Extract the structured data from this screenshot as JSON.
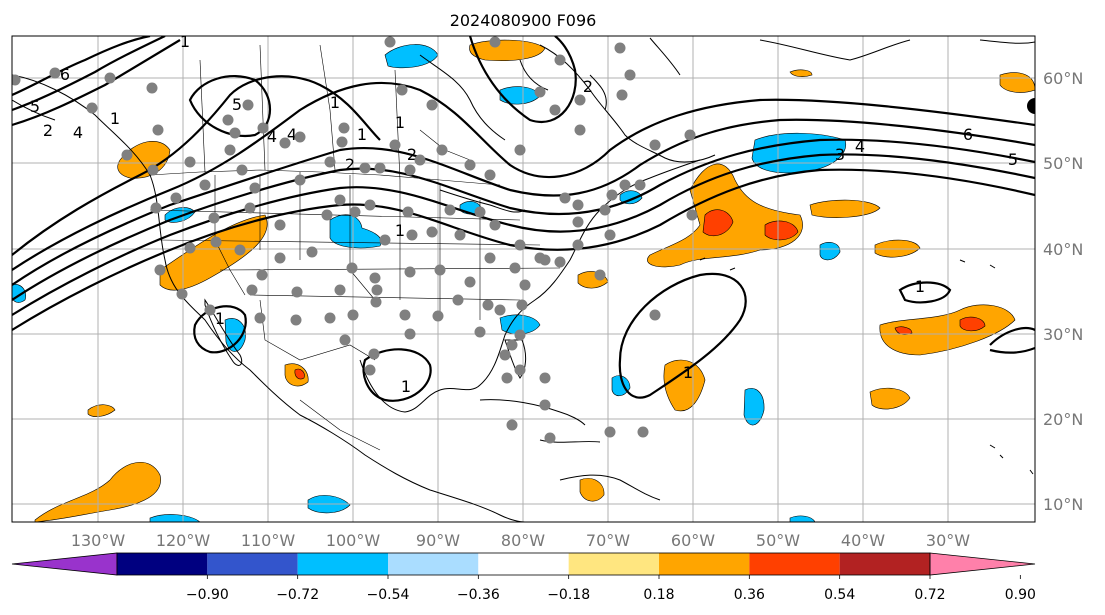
{
  "title": "2024080900 F096",
  "map": {
    "lon_labels": [
      "130°W",
      "120°W",
      "110°W",
      "100°W",
      "90°W",
      "80°W",
      "70°W",
      "60°W",
      "50°W",
      "40°W",
      "30°W"
    ],
    "lat_labels": [
      "60°N",
      "50°N",
      "40°N",
      "30°N",
      "20°N",
      "10°N"
    ],
    "extent": {
      "lon": [
        -140,
        -20
      ],
      "lat": [
        8,
        65
      ]
    }
  },
  "colorbar": {
    "ticks": [
      "−0.90",
      "−0.72",
      "−0.54",
      "−0.36",
      "−0.18",
      "0.18",
      "0.36",
      "0.54",
      "0.72",
      "0.90"
    ],
    "colors": [
      "#9933cc",
      "#000080",
      "#3355cc",
      "#00bfff",
      "#aaddff",
      "#ffffff",
      "#ffe680",
      "#ffa500",
      "#ff4000",
      "#b22222",
      "#ff80aa"
    ]
  },
  "contour_labels": [
    "1",
    "6",
    "5",
    "4",
    "2",
    "2",
    "4",
    "1",
    "1",
    "5",
    "4",
    "1",
    "2",
    "1",
    "1",
    "2",
    "6",
    "5",
    "4",
    "3",
    "1",
    "1",
    "1",
    "1"
  ]
}
